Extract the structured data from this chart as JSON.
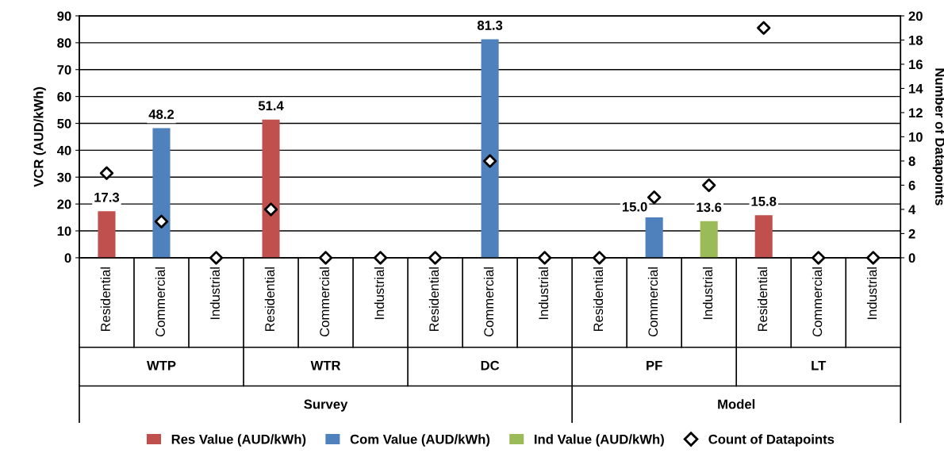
{
  "chart_data": {
    "type": "bar",
    "categories": [
      "Residential",
      "Commercial",
      "Industrial",
      "Residential",
      "Commercial",
      "Industrial",
      "Residential",
      "Commercial",
      "Industrial",
      "Residential",
      "Commercial",
      "Industrial",
      "Residential",
      "Commercial",
      "Industrial"
    ],
    "series": [
      {
        "name": "Res Value (AUD/kWh)",
        "color": "#c0504d",
        "values": [
          17.3,
          null,
          null,
          51.4,
          null,
          null,
          null,
          null,
          null,
          null,
          null,
          null,
          15.8,
          null,
          null
        ],
        "value_labels": [
          "17.3",
          null,
          null,
          "51.4",
          null,
          null,
          null,
          null,
          null,
          null,
          null,
          null,
          "15.8",
          null,
          null
        ]
      },
      {
        "name": "Com Value (AUD/kWh)",
        "color": "#4f81bd",
        "values": [
          null,
          48.2,
          null,
          null,
          null,
          null,
          null,
          81.3,
          null,
          null,
          15.0,
          null,
          null,
          null,
          null
        ],
        "value_labels": [
          null,
          "48.2",
          null,
          null,
          null,
          null,
          null,
          "81.3",
          null,
          null,
          "15.0",
          null,
          null,
          null,
          null
        ]
      },
      {
        "name": "Ind Value (AUD/kWh)",
        "color": "#9bbb59",
        "values": [
          null,
          null,
          null,
          null,
          null,
          null,
          null,
          null,
          null,
          null,
          null,
          13.6,
          null,
          null,
          null
        ],
        "value_labels": [
          null,
          null,
          null,
          null,
          null,
          null,
          null,
          null,
          null,
          null,
          null,
          "13.6",
          null,
          null,
          null
        ]
      },
      {
        "name": "Count of Datapoints",
        "type": "scatter",
        "axis": "y2",
        "color": "#000000",
        "marker": "diamond",
        "values": [
          7,
          3,
          0,
          4,
          0,
          0,
          0,
          8,
          0,
          0,
          5,
          6,
          19,
          0,
          0
        ]
      }
    ],
    "annotations": [
      "WTP",
      "WTR",
      "DC",
      "PF",
      "LT",
      "Survey",
      "Model"
    ],
    "ylabel": "VCR (AUD/kWh)",
    "y2label": "Number of Datapoints",
    "ylim": [
      0,
      90
    ],
    "yticks": [
      0,
      10,
      20,
      30,
      40,
      50,
      60,
      70,
      80,
      90
    ],
    "y2lim": [
      0,
      20
    ],
    "y2ticks": [
      0,
      2,
      4,
      6,
      8,
      10,
      12,
      14,
      16,
      18,
      20
    ],
    "grid": "y",
    "legend": "bottom"
  }
}
